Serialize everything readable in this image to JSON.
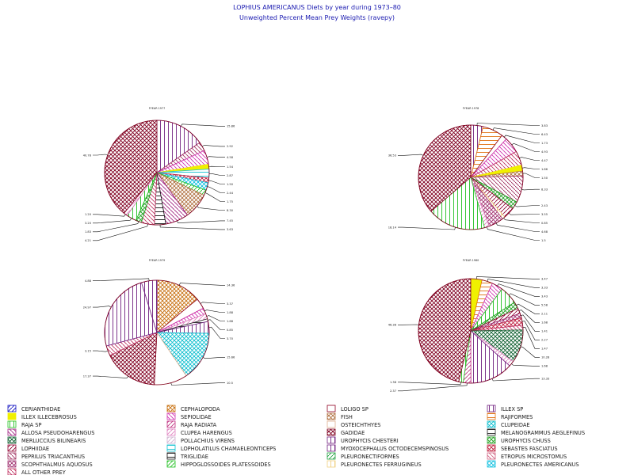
{
  "title": "LOPHIUS AMERICANUS Diets by year during 1973–80",
  "subtitle": "Unweighted Percent Mean Prey Weights (ravepy)",
  "chart_data": {
    "type": "pie",
    "pies": [
      {
        "title": "FYEAR 1977",
        "slices": [
          {
            "category": "MYOXOCEPHALUS OCTODECEMSPINOSUS",
            "value": 15.86,
            "label": "15.86"
          },
          {
            "category": "PEPRILUS TRIACANTHUS",
            "value": 2.92,
            "label": "2.92"
          },
          {
            "category": "SEPIOLIDAE",
            "value": 4.58,
            "label": "4.58"
          },
          {
            "category": "ILLEX ILLECEBROSUS",
            "value": 1.54,
            "label": "1.54"
          },
          {
            "category": "LOPHOLATILUS CHAMAELEONTICEPS",
            "value": 2.87,
            "label": "2.87"
          },
          {
            "category": "SEBASTES FASCIATUS",
            "value": 1.5,
            "label": "1.50"
          },
          {
            "category": "PLEURONECTES AMERICANUS",
            "value": 2.44,
            "label": "2.44"
          },
          {
            "category": "HIPPOGLOSSOIDES PLATESSOIDES",
            "value": 1.75,
            "label": "1.75"
          },
          {
            "category": "FISH",
            "value": 8.3,
            "label": "8.30"
          },
          {
            "category": "ALLOSA PSEUDOHARENGUS",
            "value": 7.45,
            "label": "7.45"
          },
          {
            "category": "TRIGLIDAE",
            "value": 3.63,
            "label": "3.63"
          },
          {
            "category": "ALL OTHER PREY",
            "value": 4.21,
            "label": "4.21"
          },
          {
            "category": "UROPHYCIS CHUSS",
            "value": 1.83,
            "label": "1.83"
          },
          {
            "category": "RAJA SP",
            "value": 3.2,
            "label": "3.20"
          },
          {
            "category": "CLUPEA HARENGUS",
            "value": 1.2,
            "label": "1.20"
          },
          {
            "category": "GADIDAE",
            "value": 40.78,
            "label": "40.78"
          }
        ]
      },
      {
        "title": "FYEAR 1978",
        "slices": [
          {
            "category": "ILLEX SP",
            "value": 3.83,
            "label": "3.83"
          },
          {
            "category": "RAJIFORMES",
            "value": 6.43,
            "label": "6.43"
          },
          {
            "category": "LOLIGO SP",
            "value": 1.73,
            "label": "1.73"
          },
          {
            "category": "SEPIOLIDAE",
            "value": 4.93,
            "label": "4.93"
          },
          {
            "category": "ALL OTHER PREY",
            "value": 4.47,
            "label": "4.47"
          },
          {
            "category": "ILLEX ILLECEBROSUS",
            "value": 1.86,
            "label": "1.86"
          },
          {
            "category": "FISH",
            "value": 1.5,
            "label": "1.50"
          },
          {
            "category": "PEPRILUS TRIACANTHUS",
            "value": 8.33,
            "label": "8.33"
          },
          {
            "category": "UROPHYCIS CHUSS",
            "value": 2.43,
            "label": "2.43"
          },
          {
            "category": "LOPHIIDAE",
            "value": 3.55,
            "label": "3.55"
          },
          {
            "category": "PLEURONECTES FERRUGINEUS",
            "value": 0.85,
            "label": "0.85"
          },
          {
            "category": "SCOPHTHALMUS AQUOSUS",
            "value": 4.68,
            "label": "4.68"
          },
          {
            "category": "CLUPEA HARENGUS",
            "value": 1.5,
            "label": "1.5"
          },
          {
            "category": "RAJA SP",
            "value": 18.14,
            "label": "18.14"
          },
          {
            "category": "GADIDAE",
            "value": 36.53,
            "label": "36.53"
          }
        ]
      },
      {
        "title": "FYEAR 1979",
        "slices": [
          {
            "category": "CEPHALOPODA",
            "value": 14.36,
            "label": "14.36"
          },
          {
            "category": "LOLIGO SP",
            "value": 3.37,
            "label": "3.37"
          },
          {
            "category": "SEPIOLIDAE",
            "value": 1.88,
            "label": "1.88"
          },
          {
            "category": "CLUPEA HARENGUS",
            "value": 1.68,
            "label": "1.68"
          },
          {
            "category": "MELANOGRAMMUS AEGLEFINUS",
            "value": 0.85,
            "label": "0.85"
          },
          {
            "category": "MYOXOCEPHALUS OCTODECEMSPINOSUS",
            "value": 3.7,
            "label": "3.70"
          },
          {
            "category": "CLUPEIDAE",
            "value": 15.66,
            "label": "15.66"
          },
          {
            "category": "OSTEICHTHYES",
            "value": 10.5,
            "label": "10.5"
          },
          {
            "category": "GADIDAE",
            "value": 17.37,
            "label": "17.37"
          },
          {
            "category": "ALL OTHER PREY",
            "value": 3.15,
            "label": "3.15"
          },
          {
            "category": "ILLEX SP",
            "value": 24.97,
            "label": "24.97"
          },
          {
            "category": "UROPHYCIS CHESTERI",
            "value": 4.88,
            "label": "4.88"
          }
        ]
      },
      {
        "title": "FYEAR 1980",
        "slices": [
          {
            "category": "ILLEX ILLECEBROSUS",
            "value": 3.47,
            "label": "3.47"
          },
          {
            "category": "RAJIFORMES",
            "value": 3.33,
            "label": "3.33"
          },
          {
            "category": "SEPIOLIDAE",
            "value": 3.43,
            "label": "3.43"
          },
          {
            "category": "RAJA SP",
            "value": 5.58,
            "label": "5.58"
          },
          {
            "category": "UROPHYCIS CHUSS",
            "value": 2.11,
            "label": "2.11"
          },
          {
            "category": "LOPHIIDAE",
            "value": 1.68,
            "label": "1.68"
          },
          {
            "category": "SCOPHTHALMUS AQUOSUS",
            "value": 1.41,
            "label": "1.41"
          },
          {
            "category": "SEBASTES FASCIATUS",
            "value": 2.27,
            "label": "2.27"
          },
          {
            "category": "ALL OTHER PREY",
            "value": 1.47,
            "label": "1.47"
          },
          {
            "category": "MERLUCCIUS BILINEARIS",
            "value": 10.28,
            "label": "10.28"
          },
          {
            "category": "CLUPEA HARENGUS",
            "value": 1.68,
            "label": "1.68"
          },
          {
            "category": "UROPHYCIS CHESTERI",
            "value": 13.33,
            "label": "13.33"
          },
          {
            "category": "RAJA RADIATA",
            "value": 2.37,
            "label": "2.37"
          },
          {
            "category": "RAJA SP",
            "value": 1.38,
            "label": "1.38"
          },
          {
            "category": "GADIDAE",
            "value": 46.38,
            "label": "46.38"
          }
        ]
      }
    ],
    "legend": [
      {
        "name": "CERIANTHIDAE",
        "pattern": "hatch-slash",
        "color": "#1010c0"
      },
      {
        "name": "CEPHALOPODA",
        "pattern": "crosshatch",
        "color": "#c87010"
      },
      {
        "name": "LOLIGO SP",
        "pattern": "empty",
        "color": "#900020"
      },
      {
        "name": "ILLEX SP",
        "pattern": "vertical",
        "color": "#702080"
      },
      {
        "name": "ILLEX ILLECEBROSUS",
        "pattern": "solid",
        "color": "#f0f000"
      },
      {
        "name": "SEPIOLIDAE",
        "pattern": "hatch-back",
        "color": "#d030b0"
      },
      {
        "name": "FISH",
        "pattern": "crosshatch",
        "color": "#b07040"
      },
      {
        "name": "RAJIFORMES",
        "pattern": "horizontal",
        "color": "#e07010"
      },
      {
        "name": "RAJA SP",
        "pattern": "vertical",
        "color": "#20c020"
      },
      {
        "name": "RAJA RADIATA",
        "pattern": "hatch-slash",
        "color": "#c03080"
      },
      {
        "name": "OSTEICHTHYES",
        "pattern": "empty",
        "color": "#e0b090"
      },
      {
        "name": "CLUPEIDAE",
        "pattern": "crosshatch",
        "color": "#10c0d0"
      },
      {
        "name": "ALLOSA PSEUDOHARENGUS",
        "pattern": "hatch-back",
        "color": "#a02080"
      },
      {
        "name": "CLUPEA HARENGUS",
        "pattern": "hatch-slash",
        "color": "#e080c0"
      },
      {
        "name": "GADIDAE",
        "pattern": "crosshatch",
        "color": "#800020"
      },
      {
        "name": "MELANOGRAMMUS AEGLEFINUS",
        "pattern": "horizontal",
        "color": "#202020"
      },
      {
        "name": "MERLUCCIUS BILINEARIS",
        "pattern": "crosshatch",
        "color": "#106030"
      },
      {
        "name": "POLLACHIUS VIRENS",
        "pattern": "hatch-slash",
        "color": "#d0b0d0"
      },
      {
        "name": "UROPHYCIS CHESTERI",
        "pattern": "vertical",
        "color": "#702080"
      },
      {
        "name": "UROPHYCIS CHUSS",
        "pattern": "crosshatch",
        "color": "#20a020"
      },
      {
        "name": "LOPHIIDAE",
        "pattern": "hatch-slash",
        "color": "#900030"
      },
      {
        "name": "LOPHOLATILUS CHAMAELEONTICEPS",
        "pattern": "horizontal",
        "color": "#10c0d0"
      },
      {
        "name": "MYOXOCEPHALUS OCTODECEMSPINOSUS",
        "pattern": "vertical",
        "color": "#702080"
      },
      {
        "name": "SEBASTES FASCIATUS",
        "pattern": "crosshatch",
        "color": "#c02040"
      },
      {
        "name": "PEPRILUS TRIACANTHUS",
        "pattern": "hatch-back",
        "color": "#a03060"
      },
      {
        "name": "TRIGLIDAE",
        "pattern": "horizontal",
        "color": "#101010"
      },
      {
        "name": "PLEURONECTIFORMES",
        "pattern": "hatch-slash",
        "color": "#20a040"
      },
      {
        "name": "ETROPUS MICROSTOMUS",
        "pattern": "hatch-back",
        "color": "#d06080"
      },
      {
        "name": "SCOPHTHALMUS AQUOSUS",
        "pattern": "crosshatch",
        "color": "#a03070"
      },
      {
        "name": "HIPPOGLOSSOIDES PLATESSOIDES",
        "pattern": "hatch-slash",
        "color": "#20c020"
      },
      {
        "name": "PLEURONECTES FERRUGINEUS",
        "pattern": "vertical",
        "color": "#f0d080"
      },
      {
        "name": "PLEURONECTES AMERICANUS",
        "pattern": "crosshatch",
        "color": "#10c0e0"
      },
      {
        "name": "ALL OTHER PREY",
        "pattern": "hatch-back",
        "color": "#c03060"
      }
    ]
  }
}
